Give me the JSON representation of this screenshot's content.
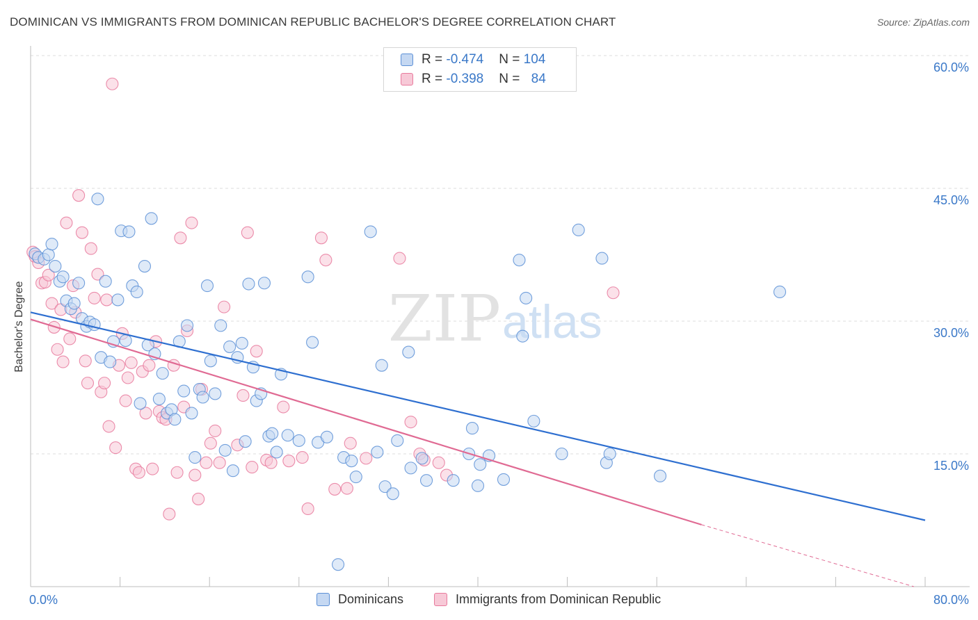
{
  "title": "DOMINICAN VS IMMIGRANTS FROM DOMINICAN REPUBLIC BACHELOR'S DEGREE CORRELATION CHART",
  "source": "Source: ZipAtlas.com",
  "watermark": {
    "zip": "ZIP",
    "atlas": "atlas"
  },
  "legend_top": {
    "rows": [
      {
        "r_label": "R = ",
        "r_value": "-0.474",
        "n_label": "N = ",
        "n_value": "104"
      },
      {
        "r_label": "R = ",
        "r_value": "-0.398",
        "n_label": "N = ",
        "n_value": "84"
      }
    ]
  },
  "legend_bottom": {
    "series1": "Dominicans",
    "series2": "Immigrants from Dominican Republic"
  },
  "axis": {
    "x_min_label": "0.0%",
    "x_max_label": "80.0%",
    "y_ticks": [
      "60.0%",
      "45.0%",
      "30.0%",
      "15.0%"
    ]
  },
  "colors": {
    "blue": "#5b8fd6",
    "blue_fill": "#c5d8f2",
    "pink": "#e8799c",
    "pink_fill": "#f7c9d7",
    "blue_line": "#2e6fd0",
    "pink_line": "#e06a93",
    "accent_text": "#3a78c8"
  },
  "chart_data": {
    "type": "scatter",
    "title": "DOMINICAN VS IMMIGRANTS FROM DOMINICAN REPUBLIC BACHELOR'S DEGREE CORRELATION CHART",
    "xlabel": "",
    "ylabel": "Bachelor's Degree",
    "xlim": [
      0,
      80
    ],
    "ylim": [
      0,
      63
    ],
    "y_ticks": [
      15,
      30,
      45,
      60
    ],
    "grid": "horizontal dashed",
    "legend_position": "top-center",
    "series": [
      {
        "name": "Dominicans",
        "R": -0.474,
        "N": 104,
        "trend": {
          "x": [
            0,
            80
          ],
          "y": [
            31.0,
            7.5
          ]
        },
        "points": [
          [
            0.4,
            37.6
          ],
          [
            0.7,
            37.2
          ],
          [
            1.2,
            37.0
          ],
          [
            1.6,
            37.5
          ],
          [
            1.9,
            38.7
          ],
          [
            2.2,
            36.2
          ],
          [
            2.6,
            34.5
          ],
          [
            2.9,
            35.0
          ],
          [
            3.2,
            32.3
          ],
          [
            3.6,
            31.4
          ],
          [
            3.9,
            32.0
          ],
          [
            4.3,
            34.3
          ],
          [
            4.6,
            30.3
          ],
          [
            5.0,
            29.4
          ],
          [
            5.3,
            29.9
          ],
          [
            5.7,
            29.6
          ],
          [
            6.0,
            43.8
          ],
          [
            6.3,
            25.9
          ],
          [
            6.7,
            34.5
          ],
          [
            7.1,
            25.4
          ],
          [
            7.4,
            27.7
          ],
          [
            7.8,
            32.4
          ],
          [
            8.1,
            40.2
          ],
          [
            8.5,
            27.8
          ],
          [
            8.8,
            40.1
          ],
          [
            9.1,
            34.0
          ],
          [
            9.5,
            33.3
          ],
          [
            9.8,
            20.7
          ],
          [
            10.2,
            36.2
          ],
          [
            10.5,
            27.3
          ],
          [
            10.8,
            41.6
          ],
          [
            11.1,
            26.3
          ],
          [
            11.5,
            21.2
          ],
          [
            11.8,
            24.1
          ],
          [
            12.2,
            19.6
          ],
          [
            12.6,
            20.0
          ],
          [
            12.9,
            18.9
          ],
          [
            13.3,
            27.7
          ],
          [
            13.7,
            22.1
          ],
          [
            14.0,
            29.5
          ],
          [
            14.4,
            19.6
          ],
          [
            14.7,
            14.6
          ],
          [
            15.1,
            22.3
          ],
          [
            15.4,
            21.4
          ],
          [
            15.8,
            34.0
          ],
          [
            16.1,
            25.5
          ],
          [
            16.5,
            21.8
          ],
          [
            17.0,
            29.5
          ],
          [
            17.4,
            15.4
          ],
          [
            17.8,
            27.1
          ],
          [
            18.1,
            13.1
          ],
          [
            18.5,
            25.9
          ],
          [
            18.9,
            27.5
          ],
          [
            19.2,
            16.4
          ],
          [
            19.5,
            34.2
          ],
          [
            19.9,
            24.8
          ],
          [
            20.2,
            21.0
          ],
          [
            20.6,
            21.8
          ],
          [
            20.9,
            34.3
          ],
          [
            21.3,
            17.0
          ],
          [
            21.6,
            17.3
          ],
          [
            22.0,
            15.2
          ],
          [
            22.4,
            24.0
          ],
          [
            23.0,
            17.1
          ],
          [
            24.0,
            16.5
          ],
          [
            24.8,
            35.0
          ],
          [
            25.2,
            27.6
          ],
          [
            25.7,
            16.3
          ],
          [
            26.5,
            16.9
          ],
          [
            27.5,
            2.5
          ],
          [
            28.0,
            14.6
          ],
          [
            28.7,
            14.2
          ],
          [
            29.1,
            12.4
          ],
          [
            30.4,
            40.1
          ],
          [
            31.0,
            15.2
          ],
          [
            31.4,
            25.0
          ],
          [
            31.7,
            11.3
          ],
          [
            32.4,
            10.5
          ],
          [
            32.8,
            16.5
          ],
          [
            33.8,
            26.5
          ],
          [
            34.0,
            13.4
          ],
          [
            35.0,
            14.5
          ],
          [
            35.4,
            12.0
          ],
          [
            37.8,
            12.0
          ],
          [
            39.2,
            15.0
          ],
          [
            39.5,
            17.9
          ],
          [
            40.0,
            11.4
          ],
          [
            40.2,
            13.8
          ],
          [
            41.0,
            14.8
          ],
          [
            42.3,
            12.1
          ],
          [
            43.7,
            36.9
          ],
          [
            44.0,
            28.3
          ],
          [
            44.3,
            32.6
          ],
          [
            45.0,
            18.7
          ],
          [
            47.5,
            15.0
          ],
          [
            49.0,
            40.3
          ],
          [
            51.1,
            37.1
          ],
          [
            51.5,
            14.0
          ],
          [
            51.8,
            15.0
          ],
          [
            56.3,
            12.5
          ],
          [
            67.0,
            33.3
          ]
        ]
      },
      {
        "name": "Immigrants from Dominican Republic",
        "R": -0.398,
        "N": 84,
        "trend": {
          "x": [
            0,
            60
          ],
          "y": [
            30.2,
            7.0
          ]
        },
        "trend_extrapolated": {
          "x": [
            60,
            79
          ],
          "y": [
            7.0,
            0.0
          ]
        },
        "points": [
          [
            0.2,
            37.8
          ],
          [
            0.4,
            37.3
          ],
          [
            0.7,
            36.6
          ],
          [
            1.0,
            34.3
          ],
          [
            1.3,
            34.4
          ],
          [
            1.6,
            35.2
          ],
          [
            1.9,
            32.0
          ],
          [
            2.1,
            29.3
          ],
          [
            2.4,
            26.8
          ],
          [
            2.7,
            31.3
          ],
          [
            2.9,
            25.4
          ],
          [
            3.2,
            41.1
          ],
          [
            3.5,
            28.0
          ],
          [
            3.8,
            34.0
          ],
          [
            4.0,
            31.0
          ],
          [
            4.3,
            44.2
          ],
          [
            4.6,
            40.0
          ],
          [
            4.9,
            25.5
          ],
          [
            5.1,
            23.0
          ],
          [
            5.4,
            38.2
          ],
          [
            5.7,
            32.6
          ],
          [
            6.0,
            35.3
          ],
          [
            6.3,
            22.0
          ],
          [
            6.6,
            23.0
          ],
          [
            6.8,
            32.4
          ],
          [
            7.0,
            18.1
          ],
          [
            7.3,
            56.8
          ],
          [
            7.6,
            15.7
          ],
          [
            7.9,
            25.0
          ],
          [
            8.2,
            28.6
          ],
          [
            8.5,
            21.0
          ],
          [
            8.7,
            23.6
          ],
          [
            9.0,
            25.3
          ],
          [
            9.4,
            13.3
          ],
          [
            9.7,
            12.9
          ],
          [
            10.0,
            24.3
          ],
          [
            10.3,
            19.6
          ],
          [
            10.6,
            25.0
          ],
          [
            10.9,
            13.3
          ],
          [
            11.2,
            27.7
          ],
          [
            11.5,
            19.8
          ],
          [
            11.8,
            19.1
          ],
          [
            12.1,
            18.9
          ],
          [
            12.4,
            8.2
          ],
          [
            12.8,
            25.0
          ],
          [
            13.1,
            12.9
          ],
          [
            13.4,
            39.4
          ],
          [
            13.7,
            20.3
          ],
          [
            14.0,
            28.9
          ],
          [
            14.4,
            41.1
          ],
          [
            14.7,
            12.6
          ],
          [
            15.0,
            9.9
          ],
          [
            15.3,
            22.3
          ],
          [
            15.7,
            14.0
          ],
          [
            16.1,
            16.2
          ],
          [
            16.5,
            17.6
          ],
          [
            16.9,
            14.0
          ],
          [
            17.3,
            31.6
          ],
          [
            18.5,
            16.0
          ],
          [
            19.0,
            21.6
          ],
          [
            19.4,
            40.0
          ],
          [
            19.8,
            13.5
          ],
          [
            20.2,
            26.6
          ],
          [
            21.1,
            14.3
          ],
          [
            21.5,
            14.0
          ],
          [
            22.6,
            20.3
          ],
          [
            23.1,
            14.2
          ],
          [
            24.3,
            14.6
          ],
          [
            24.8,
            8.8
          ],
          [
            26.0,
            39.4
          ],
          [
            26.4,
            36.9
          ],
          [
            27.2,
            11.0
          ],
          [
            28.3,
            11.1
          ],
          [
            28.6,
            16.2
          ],
          [
            30.0,
            14.5
          ],
          [
            33.0,
            37.1
          ],
          [
            34.0,
            18.6
          ],
          [
            34.8,
            15.0
          ],
          [
            35.2,
            14.3
          ],
          [
            36.5,
            14.0
          ],
          [
            37.2,
            12.6
          ],
          [
            52.1,
            33.2
          ]
        ]
      }
    ]
  }
}
